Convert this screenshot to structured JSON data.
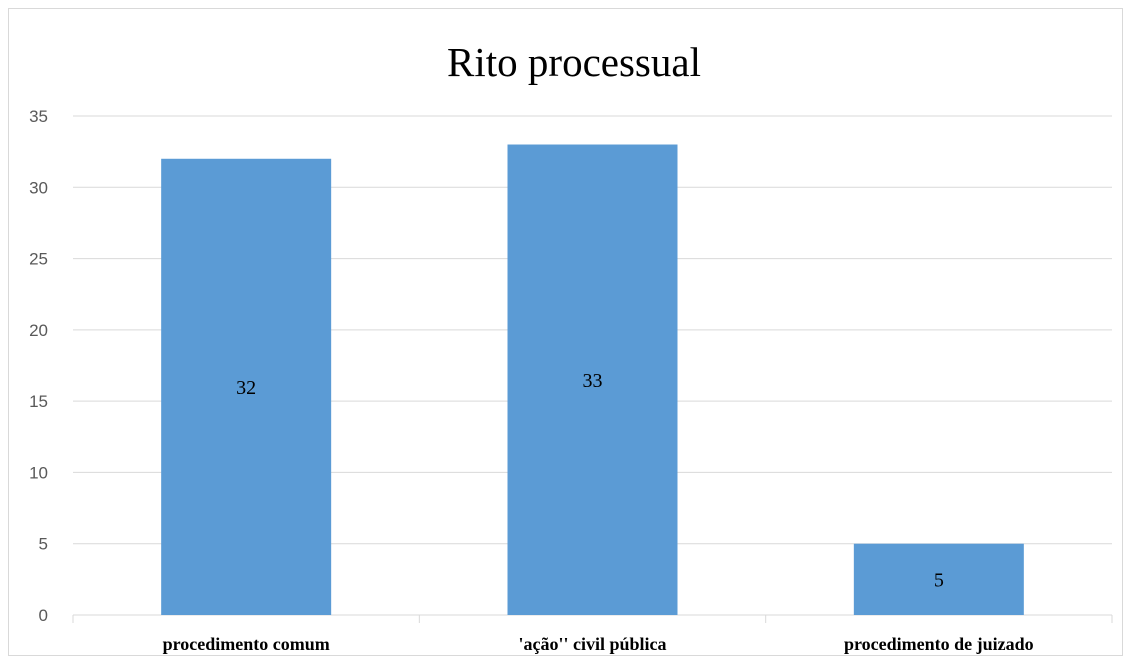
{
  "chart_data": {
    "type": "bar",
    "title": "Rito processual",
    "categories": [
      "procedimento comum",
      "'ação'' civil pública",
      "procedimento de juizado"
    ],
    "values": [
      32,
      33,
      5
    ],
    "data_labels": [
      "32",
      "33",
      "5"
    ],
    "ylim": [
      0,
      35
    ],
    "yticks": [
      0,
      5,
      10,
      15,
      20,
      25,
      30,
      35
    ],
    "xlabel": "",
    "ylabel": "",
    "grid": true,
    "legend": "none",
    "colors": {
      "bar": "#5b9bd5",
      "grid": "#d9d9d9",
      "tick_text": "#595959"
    }
  }
}
